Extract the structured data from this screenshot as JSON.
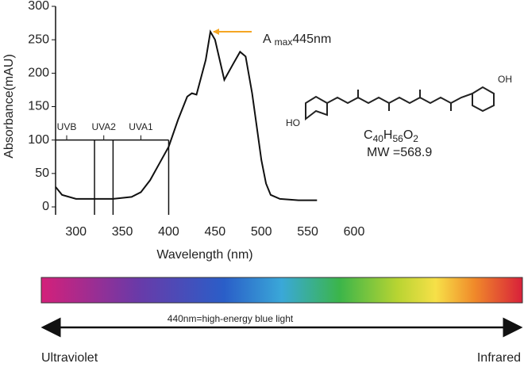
{
  "chart_data": {
    "type": "line",
    "x_label": "Wavelength (nm)",
    "y_label": "Absorbance(mAU)",
    "x": [
      278,
      285,
      300,
      320,
      340,
      360,
      370,
      380,
      390,
      400,
      410,
      420,
      425,
      430,
      440,
      445,
      450,
      460,
      470,
      477,
      483,
      490,
      495,
      500,
      505,
      510,
      520,
      540,
      560
    ],
    "values": [
      30,
      18,
      12,
      12,
      12,
      15,
      22,
      40,
      65,
      90,
      130,
      165,
      170,
      168,
      220,
      262,
      250,
      190,
      215,
      232,
      225,
      170,
      120,
      70,
      35,
      18,
      12,
      10,
      10
    ],
    "color": "#111111",
    "xlim": [
      278,
      600
    ],
    "xticks": [
      300,
      350,
      400,
      450,
      500,
      550,
      600
    ],
    "ylim": [
      0,
      300
    ],
    "yticks": [
      0,
      50,
      100,
      150,
      200,
      250,
      300
    ],
    "region_bounds": [
      320,
      340,
      400
    ],
    "region_top": 100,
    "region_labels": [
      "UVB",
      "UVA2",
      "UVA1"
    ],
    "region_label_x": [
      290,
      330,
      370
    ],
    "peak_annotation": {
      "symbol": "A",
      "subscript": "max",
      "text": "445nm",
      "x": 445,
      "y": 262,
      "color": "#f5a623"
    }
  },
  "compound": {
    "formula": [
      "C",
      "40",
      "H",
      "56",
      "O",
      "2"
    ],
    "mw": "MW =568.9",
    "labels": [
      "HO",
      "OH"
    ]
  },
  "spectrum": {
    "caption": "440nm=high-energy blue light",
    "left": "Ultraviolet",
    "right": "Infrared"
  }
}
